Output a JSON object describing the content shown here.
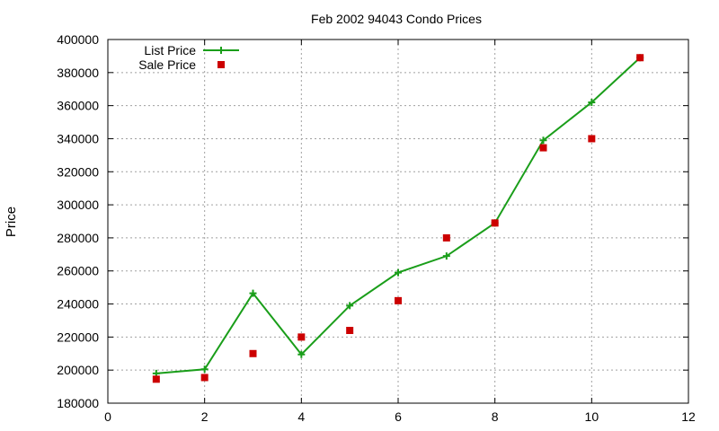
{
  "chart_data": {
    "type": "line",
    "title": "Feb 2002 94043 Condo Prices",
    "xlabel": "",
    "ylabel": "Price",
    "xlim": [
      0,
      12
    ],
    "ylim": [
      180000,
      400000
    ],
    "xticks": [
      0,
      2,
      4,
      6,
      8,
      10,
      12
    ],
    "yticks": [
      180000,
      200000,
      220000,
      240000,
      260000,
      280000,
      300000,
      320000,
      340000,
      360000,
      380000,
      400000
    ],
    "grid": true,
    "legend_position": "top-left",
    "series": [
      {
        "name": "List Price",
        "style": "linespoints",
        "marker": "plus",
        "color": "#1a9e1a",
        "x": [
          1,
          2,
          3,
          4,
          5,
          6,
          7,
          8,
          9,
          10,
          11
        ],
        "y": [
          198000,
          200500,
          246500,
          209500,
          239000,
          259000,
          269000,
          289000,
          339000,
          362000,
          389000
        ]
      },
      {
        "name": "Sale Price",
        "style": "points",
        "marker": "square",
        "color": "#cc0000",
        "x": [
          1,
          2,
          3,
          4,
          5,
          6,
          7,
          8,
          9,
          10,
          11
        ],
        "y": [
          194500,
          195500,
          210000,
          220000,
          224000,
          242000,
          280000,
          289000,
          334500,
          340000,
          389000
        ]
      }
    ]
  }
}
